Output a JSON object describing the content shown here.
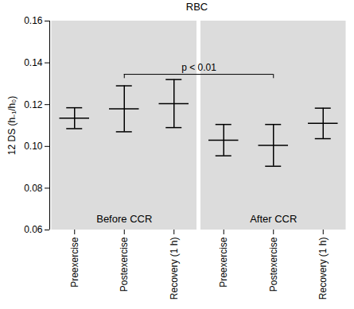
{
  "chart_data": {
    "type": "errorbar",
    "title": "RBC",
    "y_label": "12 DS (h₋₁/h₀)",
    "categories": [
      "Preexercise",
      "Postexercise",
      "Recovery (1 h)",
      "Preexercise",
      "Postexercise",
      "Recovery (1 h)"
    ],
    "category_groups": [
      "Before CCR",
      "Before CCR",
      "Before CCR",
      "After CCR",
      "After CCR",
      "After CCR"
    ],
    "values": [
      0.1135,
      0.118,
      0.1205,
      0.103,
      0.1005,
      0.111
    ],
    "errors": [
      0.005,
      0.011,
      0.0115,
      0.0075,
      0.01,
      0.0073
    ],
    "color": "#000000",
    "ylim": [
      0.06,
      0.16
    ],
    "yticks": [
      0.06,
      0.08,
      {
        "value": 0.1,
        "label": "0.10"
      },
      0.12,
      0.14,
      0.16
    ],
    "annotations": [
      {
        "text": "p < 0.01",
        "from": 1,
        "to": 4
      }
    ]
  }
}
